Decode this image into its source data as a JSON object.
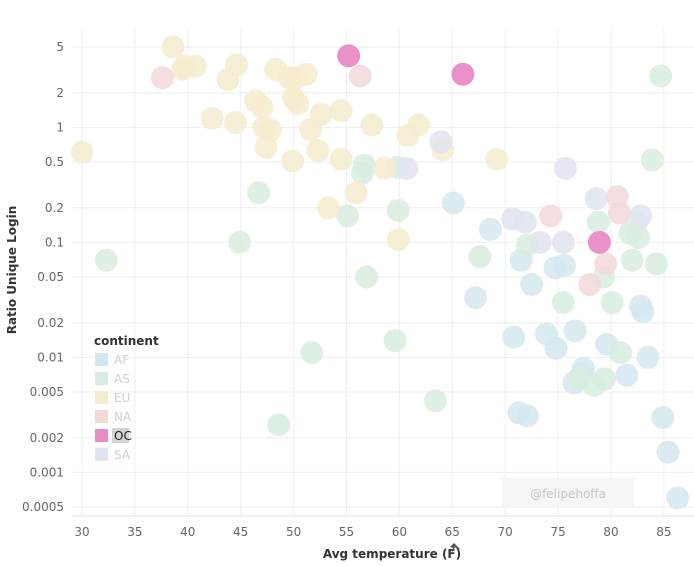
{
  "chart_data": {
    "type": "scatter",
    "xlabel": "Avg temperature (F)",
    "ylabel": "Ratio Unique Login",
    "xscale": "linear",
    "yscale": "log",
    "xlim": [
      29,
      87
    ],
    "ylim": [
      0.0004,
      7
    ],
    "x_ticks": [
      "30",
      "35",
      "40",
      "45",
      "50",
      "55",
      "60",
      "65",
      "70",
      "75",
      "80",
      "85"
    ],
    "y_ticks": [
      "5",
      "2",
      "1",
      "0.5",
      "0.2",
      "0.1",
      "0.05",
      "0.02",
      "0.01",
      "0.005",
      "0.002",
      "0.001",
      "0.0005"
    ],
    "grid": true,
    "legend": {
      "title": "continent",
      "position": "bottom-left",
      "highlighted": "OC"
    },
    "watermark": "@felipehoffa",
    "colors": {
      "AF": "#d3e8ee",
      "AS": "#d8ecdf",
      "EU": "#f6ebcf",
      "NA": "#f3d8da",
      "OC": "#e98bc6",
      "SA": "#e0e4ef"
    },
    "series": [
      {
        "name": "AF",
        "points": [
          [
            65.1,
            0.22
          ],
          [
            68.6,
            0.13
          ],
          [
            67.2,
            0.033
          ],
          [
            71.5,
            0.07
          ],
          [
            72.5,
            0.043
          ],
          [
            70.8,
            0.015
          ],
          [
            71.3,
            0.0033
          ],
          [
            72.1,
            0.0031
          ],
          [
            73.9,
            0.016
          ],
          [
            74.8,
            0.012
          ],
          [
            74.7,
            0.06
          ],
          [
            75.6,
            0.063
          ],
          [
            76.6,
            0.017
          ],
          [
            76.5,
            0.006
          ],
          [
            77.4,
            0.008
          ],
          [
            77.3,
            0.0072
          ],
          [
            79.6,
            0.013
          ],
          [
            81.5,
            0.007
          ],
          [
            82.8,
            0.028
          ],
          [
            83.0,
            0.025
          ],
          [
            83.5,
            0.01
          ],
          [
            84.9,
            0.003
          ],
          [
            85.4,
            0.0015
          ],
          [
            86.3,
            0.0006
          ]
        ]
      },
      {
        "name": "AS",
        "points": [
          [
            32.3,
            0.07
          ],
          [
            46.7,
            0.27
          ],
          [
            44.9,
            0.1
          ],
          [
            51.7,
            0.011
          ],
          [
            48.6,
            0.0026
          ],
          [
            55.1,
            0.17
          ],
          [
            56.7,
            0.47
          ],
          [
            56.5,
            0.4
          ],
          [
            56.9,
            0.05
          ],
          [
            59.8,
            0.45
          ],
          [
            59.9,
            0.19
          ],
          [
            59.6,
            0.014
          ],
          [
            63.4,
            0.0042
          ],
          [
            67.6,
            0.075
          ],
          [
            83.9,
            0.52
          ],
          [
            84.7,
            2.8
          ],
          [
            72.1,
            0.095
          ],
          [
            75.5,
            0.03
          ],
          [
            80.1,
            0.03
          ],
          [
            77.0,
            0.0066
          ],
          [
            78.4,
            0.0057
          ],
          [
            79.4,
            0.0065
          ],
          [
            80.9,
            0.011
          ],
          [
            78.8,
            0.15
          ],
          [
            82.4,
            0.15
          ],
          [
            81.8,
            0.12
          ],
          [
            82.0,
            0.07
          ],
          [
            84.3,
            0.065
          ],
          [
            82.6,
            0.11
          ],
          [
            79.3,
            0.05
          ]
        ]
      },
      {
        "name": "EU",
        "points": [
          [
            30,
            0.61
          ],
          [
            38.6,
            5
          ],
          [
            39.5,
            3.2
          ],
          [
            39.7,
            3.4
          ],
          [
            40.7,
            3.4
          ],
          [
            43.8,
            2.6
          ],
          [
            44.6,
            3.5
          ],
          [
            42.3,
            1.2
          ],
          [
            44.5,
            1.1
          ],
          [
            46.4,
            1.7
          ],
          [
            47.0,
            1.5
          ],
          [
            48.3,
            3.2
          ],
          [
            49.6,
            2.7
          ],
          [
            50.2,
            2.7
          ],
          [
            51.2,
            2.9
          ],
          [
            50.0,
            1.8
          ],
          [
            50.4,
            1.6
          ],
          [
            47.2,
            1.0
          ],
          [
            47.8,
            0.95
          ],
          [
            47.4,
            0.67
          ],
          [
            49.9,
            0.51
          ],
          [
            51.6,
            0.96
          ],
          [
            52.6,
            1.3
          ],
          [
            52.3,
            0.63
          ],
          [
            54.5,
            1.4
          ],
          [
            54.5,
            0.53
          ],
          [
            53.3,
            0.2
          ],
          [
            55.9,
            0.27
          ],
          [
            57.4,
            1.05
          ],
          [
            58.6,
            0.44
          ],
          [
            59.9,
            0.106
          ],
          [
            60.8,
            0.85
          ],
          [
            61.8,
            1.05
          ],
          [
            64.1,
            0.64
          ],
          [
            69.2,
            0.53
          ]
        ]
      },
      {
        "name": "NA",
        "points": [
          [
            37.6,
            2.7
          ],
          [
            56.3,
            2.8
          ],
          [
            74.3,
            0.17
          ],
          [
            78.0,
            0.043
          ],
          [
            80.6,
            0.25
          ],
          [
            80.8,
            0.18
          ],
          [
            79.5,
            0.065
          ]
        ]
      },
      {
        "name": "OC",
        "points": [
          [
            55.2,
            4.2
          ],
          [
            66.0,
            2.9
          ],
          [
            78.9,
            0.1
          ]
        ]
      },
      {
        "name": "SA",
        "points": [
          [
            63.9,
            0.75
          ],
          [
            60.7,
            0.44
          ],
          [
            75.7,
            0.44
          ],
          [
            78.6,
            0.24
          ],
          [
            82.8,
            0.17
          ],
          [
            70.7,
            0.16
          ],
          [
            71.9,
            0.15
          ],
          [
            75.5,
            0.1
          ],
          [
            73.3,
            0.1
          ]
        ]
      }
    ]
  }
}
